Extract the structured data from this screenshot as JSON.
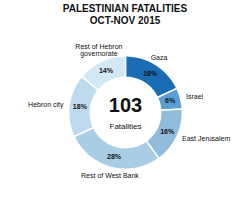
{
  "chart_data": {
    "type": "pie",
    "title": "PALESTINIAN FATALITIES",
    "subtitle": "OCT-NOV 2015",
    "annotations": [
      "103",
      "Fatalities"
    ],
    "categories": [
      "Gaza",
      "Israel",
      "East Jerusalem",
      "Rest of West Bank",
      "Hebron city",
      "Rest of Hebron\ngovernorate"
    ],
    "values": [
      18,
      6,
      16,
      28,
      18,
      14
    ],
    "value_labels": [
      "18%",
      "6%",
      "16%",
      "28%",
      "18%",
      "14%"
    ],
    "colors": [
      "#1a6db5",
      "#5a9fd4",
      "#92bcdb",
      "#aacde6",
      "#bedaee",
      "#d3e8f5"
    ],
    "data_labels": true
  }
}
